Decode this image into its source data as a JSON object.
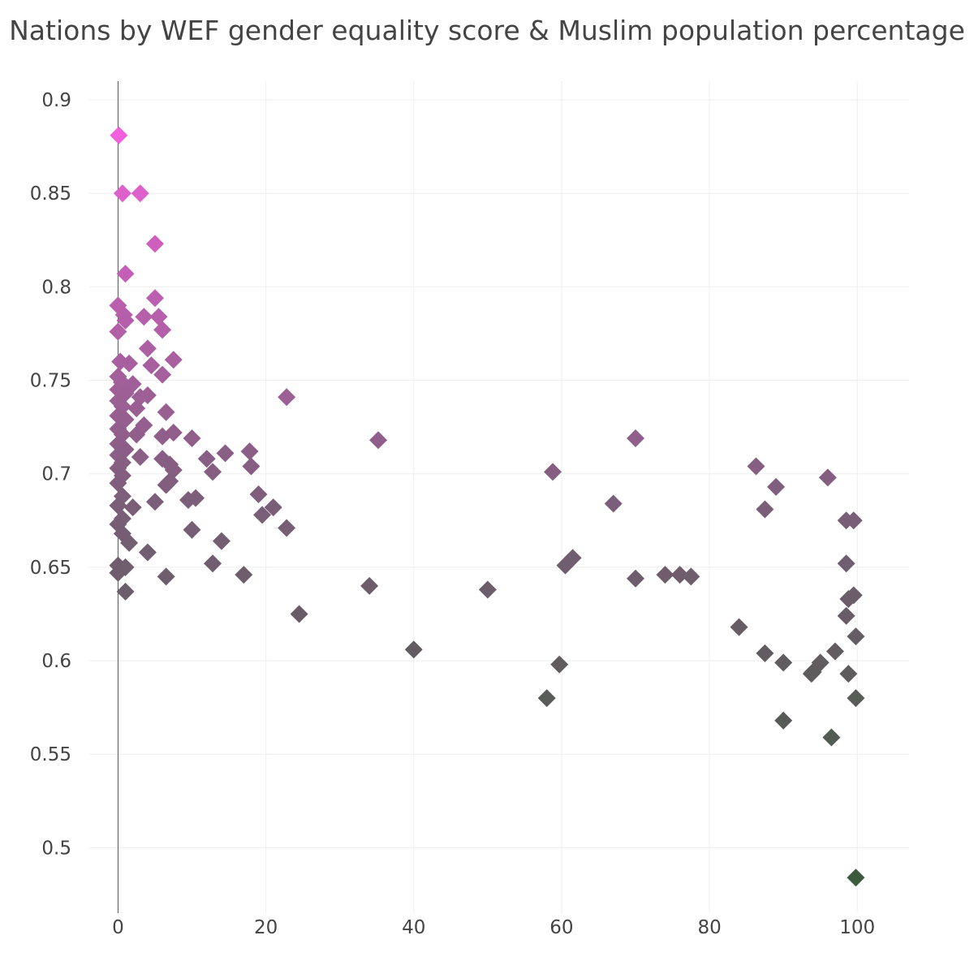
{
  "chart_data": {
    "type": "scatter",
    "title": "Nations by WEF gender equality score & Muslim population percentage",
    "xlabel": "",
    "ylabel": "",
    "xlim": [
      -4,
      107
    ],
    "ylim": [
      0.465,
      0.91
    ],
    "x_ticks": [
      0,
      20,
      40,
      60,
      80,
      100
    ],
    "x_tick_labels": [
      "0",
      "20",
      "40",
      "60",
      "80",
      "100"
    ],
    "y_ticks": [
      0.5,
      0.55,
      0.6,
      0.65,
      0.7,
      0.75,
      0.8,
      0.85,
      0.9
    ],
    "y_tick_labels": [
      "0.5",
      "0.55",
      "0.6",
      "0.65",
      "0.7",
      "0.75",
      "0.8",
      "0.85",
      "0.9"
    ],
    "grid": true,
    "legend": "none",
    "marker": "diamond",
    "color_scale": {
      "low": "#3c5a3c",
      "mid": "#7a5e78",
      "high": "#f060dc"
    },
    "series": [
      {
        "name": "Nations",
        "points": [
          [
            0.1,
            0.881
          ],
          [
            0.6,
            0.85
          ],
          [
            3.0,
            0.85
          ],
          [
            5.0,
            0.823
          ],
          [
            1.0,
            0.807
          ],
          [
            0.0,
            0.79
          ],
          [
            5.0,
            0.794
          ],
          [
            0.8,
            0.785
          ],
          [
            1.0,
            0.782
          ],
          [
            3.5,
            0.784
          ],
          [
            5.5,
            0.784
          ],
          [
            6.0,
            0.777
          ],
          [
            0.0,
            0.776
          ],
          [
            4.0,
            0.767
          ],
          [
            7.5,
            0.761
          ],
          [
            0.3,
            0.76
          ],
          [
            1.5,
            0.759
          ],
          [
            4.5,
            0.758
          ],
          [
            6.0,
            0.753
          ],
          [
            0.0,
            0.752
          ],
          [
            0.5,
            0.749
          ],
          [
            2.0,
            0.748
          ],
          [
            0.0,
            0.745
          ],
          [
            1.0,
            0.743
          ],
          [
            4.0,
            0.742
          ],
          [
            22.8,
            0.741
          ],
          [
            3.0,
            0.741
          ],
          [
            0.0,
            0.739
          ],
          [
            0.6,
            0.736
          ],
          [
            2.5,
            0.735
          ],
          [
            6.5,
            0.733
          ],
          [
            0.0,
            0.731
          ],
          [
            1.0,
            0.729
          ],
          [
            3.5,
            0.726
          ],
          [
            0.0,
            0.724
          ],
          [
            7.5,
            0.722
          ],
          [
            0.6,
            0.721
          ],
          [
            2.5,
            0.721
          ],
          [
            6.0,
            0.72
          ],
          [
            10.0,
            0.719
          ],
          [
            35.2,
            0.718
          ],
          [
            70.0,
            0.719
          ],
          [
            0.0,
            0.716
          ],
          [
            1.0,
            0.713
          ],
          [
            14.5,
            0.711
          ],
          [
            17.8,
            0.712
          ],
          [
            0.0,
            0.71
          ],
          [
            3.0,
            0.709
          ],
          [
            6.0,
            0.708
          ],
          [
            12.0,
            0.708
          ],
          [
            0.6,
            0.706
          ],
          [
            7.0,
            0.705
          ],
          [
            18.0,
            0.704
          ],
          [
            86.3,
            0.704
          ],
          [
            0.0,
            0.703
          ],
          [
            7.5,
            0.702
          ],
          [
            12.8,
            0.701
          ],
          [
            58.8,
            0.701
          ],
          [
            0.6,
            0.699
          ],
          [
            96.0,
            0.698
          ],
          [
            7.0,
            0.696
          ],
          [
            0.0,
            0.695
          ],
          [
            6.5,
            0.694
          ],
          [
            89.0,
            0.693
          ],
          [
            19.0,
            0.689
          ],
          [
            0.6,
            0.688
          ],
          [
            10.5,
            0.687
          ],
          [
            9.5,
            0.686
          ],
          [
            5.0,
            0.685
          ],
          [
            67.0,
            0.684
          ],
          [
            0.0,
            0.683
          ],
          [
            2.0,
            0.682
          ],
          [
            21.0,
            0.682
          ],
          [
            87.5,
            0.681
          ],
          [
            19.5,
            0.678
          ],
          [
            0.6,
            0.676
          ],
          [
            98.5,
            0.675
          ],
          [
            99.5,
            0.675
          ],
          [
            0.0,
            0.673
          ],
          [
            22.8,
            0.671
          ],
          [
            10.0,
            0.67
          ],
          [
            0.6,
            0.668
          ],
          [
            1.5,
            0.663
          ],
          [
            14.0,
            0.664
          ],
          [
            4.0,
            0.658
          ],
          [
            61.5,
            0.655
          ],
          [
            60.5,
            0.651
          ],
          [
            0.0,
            0.651
          ],
          [
            1.0,
            0.65
          ],
          [
            98.5,
            0.652
          ],
          [
            12.8,
            0.652
          ],
          [
            0.0,
            0.647
          ],
          [
            17.0,
            0.646
          ],
          [
            74.0,
            0.646
          ],
          [
            76.0,
            0.646
          ],
          [
            77.5,
            0.645
          ],
          [
            6.5,
            0.645
          ],
          [
            70.0,
            0.644
          ],
          [
            34.0,
            0.64
          ],
          [
            1.0,
            0.637
          ],
          [
            50.0,
            0.638
          ],
          [
            99.5,
            0.635
          ],
          [
            98.8,
            0.633
          ],
          [
            24.5,
            0.625
          ],
          [
            98.5,
            0.624
          ],
          [
            84.0,
            0.618
          ],
          [
            99.8,
            0.613
          ],
          [
            40.0,
            0.606
          ],
          [
            97.0,
            0.605
          ],
          [
            87.5,
            0.604
          ],
          [
            90.0,
            0.599
          ],
          [
            95.0,
            0.599
          ],
          [
            59.7,
            0.598
          ],
          [
            94.0,
            0.594
          ],
          [
            93.8,
            0.593
          ],
          [
            98.8,
            0.593
          ],
          [
            58.0,
            0.58
          ],
          [
            99.8,
            0.58
          ],
          [
            90.0,
            0.568
          ],
          [
            96.5,
            0.559
          ],
          [
            99.8,
            0.484
          ]
        ]
      }
    ]
  }
}
